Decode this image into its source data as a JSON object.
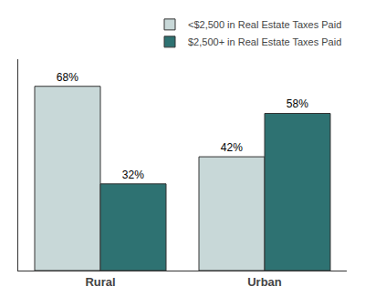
{
  "chart_data": {
    "type": "bar",
    "categories": [
      "Rural",
      "Urban"
    ],
    "series": [
      {
        "name": "<$2,500 in Real Estate Taxes Paid",
        "color": "#c8d8d8",
        "values": [
          68,
          42
        ],
        "value_labels": [
          "68%",
          "42%"
        ]
      },
      {
        "name": "$2,500+ in Real Estate Taxes Paid",
        "color": "#2e7272",
        "values": [
          32,
          58
        ],
        "value_labels": [
          "32%",
          "58%"
        ]
      }
    ],
    "ylim": [
      0,
      78
    ],
    "yticks": [],
    "grid": false,
    "legend": "upper right",
    "data_labels": true,
    "tick_labels": "x"
  }
}
